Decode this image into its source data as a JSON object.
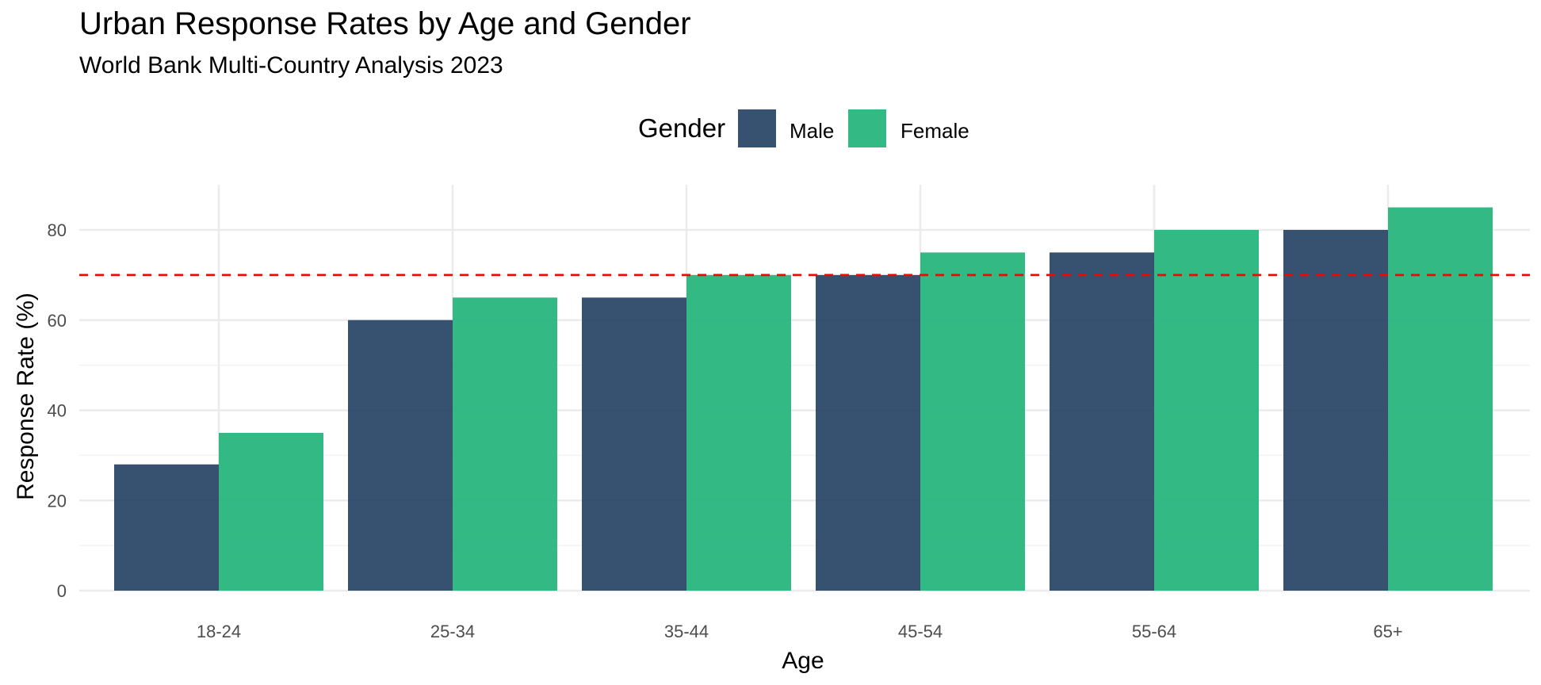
{
  "chart_data": {
    "type": "bar",
    "title": "Urban Response Rates by Age and Gender",
    "subtitle": "World Bank Multi-Country Analysis 2023",
    "xlabel": "Age",
    "ylabel": "Response Rate (%)",
    "categories": [
      "18-24",
      "25-34",
      "35-44",
      "45-54",
      "55-64",
      "65+"
    ],
    "series": [
      {
        "name": "Male",
        "color": "#1b3a5c",
        "values": [
          28,
          60,
          65,
          70,
          75,
          80
        ]
      },
      {
        "name": "Female",
        "color": "#22b37a",
        "values": [
          35,
          65,
          70,
          75,
          80,
          85
        ]
      }
    ],
    "ylim": [
      0,
      90
    ],
    "yticks": [
      0,
      20,
      40,
      60,
      80
    ],
    "reference_line": {
      "value": 70,
      "style": "dashed",
      "color": "#ff0000"
    },
    "legend": {
      "title": "Gender",
      "position": "top"
    },
    "grid": true
  }
}
